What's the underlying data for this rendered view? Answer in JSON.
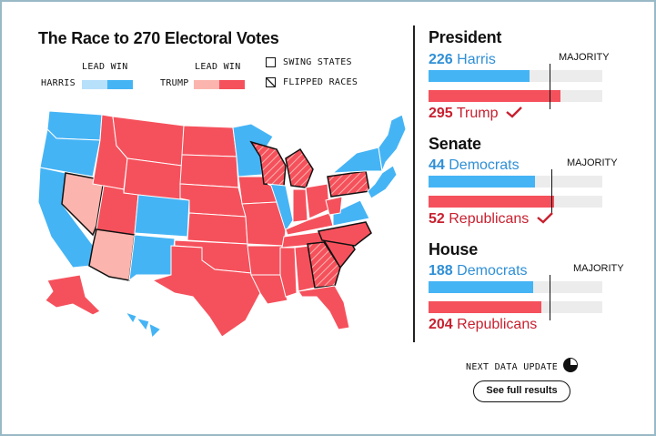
{
  "header": {
    "title": "The Race to 270 Electoral Votes"
  },
  "legend": {
    "harris_lead_win": "LEAD WIN",
    "harris_label": "HARRIS",
    "trump_lead_win": "LEAD WIN",
    "trump_label": "TRUMP",
    "swing_states": "SWING STATES",
    "flipped_races": "FLIPPED RACES"
  },
  "colors": {
    "dem_win": "#45b4f5",
    "dem_lead": "#b7e0fb",
    "rep_win": "#f5515c",
    "rep_lead": "#fbb5ae",
    "dem_text": "#2f8fd6",
    "rep_text": "#c8202f"
  },
  "president": {
    "title": "President",
    "dem_count": "226",
    "dem_name": "Harris",
    "rep_count": "295",
    "rep_name": "Trump",
    "majority_label": "MAJORITY",
    "dem_value": 226,
    "rep_value": 295,
    "total": 538,
    "majority": 270,
    "winner_check": "check-icon"
  },
  "senate": {
    "title": "Senate",
    "dem_count": "44",
    "dem_name": "Democrats",
    "rep_count": "52",
    "rep_name": "Republicans",
    "majority_label": "MAJORITY",
    "dem_value": 44,
    "rep_value": 52,
    "total": 100,
    "majority": 51,
    "winner_check": "check-icon"
  },
  "house": {
    "title": "House",
    "dem_count": "188",
    "dem_name": "Democrats",
    "rep_count": "204",
    "rep_name": "Republicans",
    "majority_label": "MAJORITY",
    "dem_value": 188,
    "rep_value": 204,
    "total": 435,
    "majority": 218
  },
  "footer": {
    "next_update": "NEXT DATA UPDATE",
    "see_full_results": "See full results",
    "timer_icon": "pie-timer-icon"
  }
}
